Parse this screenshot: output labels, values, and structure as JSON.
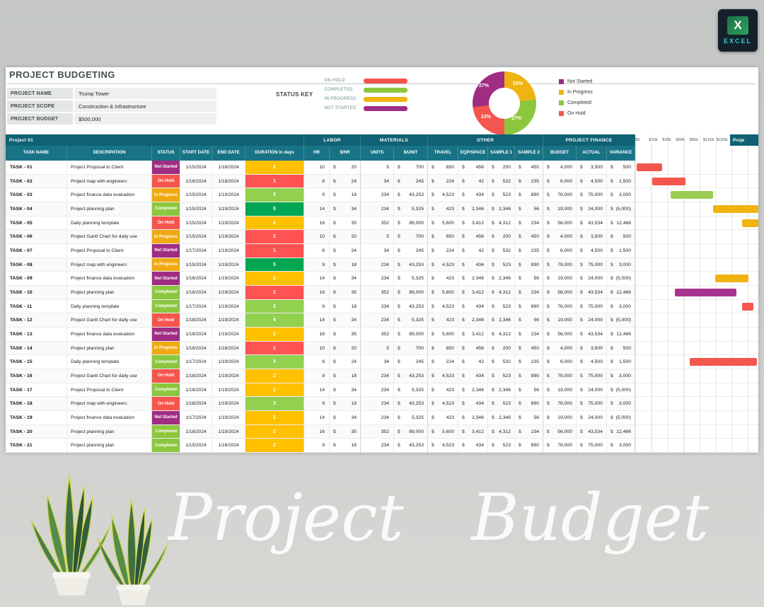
{
  "logo": {
    "app_label": "EXCEL"
  },
  "header": {
    "title": "PROJECT BUDGETING"
  },
  "project_info": [
    {
      "label": "PROJECT NAME",
      "value": "Trump Tower"
    },
    {
      "label": "PROJECT SCOPE",
      "value": "Construction & Infrastructure"
    },
    {
      "label": "PROJECT BUDGET",
      "value": "$500,000"
    }
  ],
  "status_key": {
    "label": "STATUS KEY",
    "items": [
      {
        "label": "ON HOLD",
        "color": "#f4564e"
      },
      {
        "label": "COMPLETED",
        "color": "#8cc63e"
      },
      {
        "label": "IN PROGRESS",
        "color": "#f0b411"
      },
      {
        "label": "NOT STARTED",
        "color": "#9e2d83"
      }
    ]
  },
  "chart_data": {
    "type": "pie",
    "donut": true,
    "labels": [
      "Not Started",
      "In Progress",
      "Completed",
      "On Hold"
    ],
    "values": [
      27,
      23,
      27,
      23
    ],
    "slice_labels": [
      "27%",
      "23%",
      "27%",
      "23%"
    ],
    "colors": [
      "#9e2d83",
      "#f0b411",
      "#8cc63e",
      "#f4564e"
    ],
    "legend_position": "right"
  },
  "colors": {
    "band1": "#0f6173",
    "band2": "#187386",
    "not_started": "#9e2d83",
    "on_hold": "#f4564e",
    "in_progress": "#efa912",
    "completed": "#8cc63e",
    "duration_yellow": "#ffc000",
    "duration_red": "#ff5252",
    "duration_green": "#92d050",
    "duration_dark_green": "#00a651",
    "gantt_red": "#f4564e",
    "gantt_green": "#9ccd52",
    "gantt_yellow": "#f0b411",
    "gantt_purple": "#a8338e"
  },
  "table": {
    "group_headers": [
      "Project 01",
      "LABOR",
      "MATERIALS",
      "OTHER",
      "PROJECT FINANCE"
    ],
    "gantt_header_cut": "Proje",
    "gantt_scale": [
      "$5",
      "$10k",
      "$30k",
      "$60k",
      "$90k",
      "$120k",
      "$150k"
    ],
    "columns": [
      "TASK NAME",
      "DESCRIPATION",
      "STATUS",
      "START DATE",
      "END DATE",
      "DURATION in days",
      "HR",
      "$/HR",
      "UNITS",
      "$/UNIT",
      "TRAVEL",
      "EQP/SPACE",
      "SAMPLE 1",
      "SAMPLE 2",
      "BUDGET",
      "ACTUAL",
      "VARIANCE"
    ],
    "rows": [
      {
        "task": "TASK - 01",
        "description": "Project Proposal to Client",
        "status": "Not Started",
        "start_date": "1/15/2024",
        "end_date": "1/16/2024",
        "duration": "2",
        "duration_color": "yellow",
        "hr": "10",
        "rate_hr": "20",
        "units": "5",
        "rate_unit": "700",
        "travel": "650",
        "eqp_space": "456",
        "sample1": "200",
        "sample2": "450",
        "budget": "4,000",
        "actual": "3,500",
        "variance": "500",
        "gantt": {
          "start_pct": 1,
          "width_pct": 21,
          "color": "red"
        }
      },
      {
        "task": "TASK - 02",
        "description": "Project map with engineers",
        "status": "On Hold",
        "start_date": "1/16/2024",
        "end_date": "1/18/2024",
        "duration": "1",
        "duration_color": "red",
        "hr": "8",
        "rate_hr": "24",
        "units": "34",
        "rate_unit": "245",
        "travel": "224",
        "eqp_space": "42",
        "sample1": "532",
        "sample2": "235",
        "budget": "6,000",
        "actual": "4,500",
        "variance": "1,500",
        "gantt": {
          "start_pct": 14,
          "width_pct": 27,
          "color": "red"
        }
      },
      {
        "task": "TASK - 03",
        "description": "Project finance data evaluation",
        "status": "In Progress",
        "start_date": "1/15/2024",
        "end_date": "1/19/2024",
        "duration": "3",
        "duration_color": "green",
        "hr": "9",
        "rate_hr": "18",
        "units": "234",
        "rate_unit": "43,253",
        "travel": "4,523",
        "eqp_space": "434",
        "sample1": "523",
        "sample2": "890",
        "budget": "78,000",
        "actual": "75,000",
        "variance": "3,000",
        "gantt": {
          "start_pct": 29,
          "width_pct": 34,
          "color": "green"
        }
      },
      {
        "task": "TASK - 04",
        "description": "Project planning plan",
        "status": "Completed",
        "start_date": "1/15/2024",
        "end_date": "1/19/2024",
        "duration": "5",
        "duration_color": "dark_green",
        "hr": "14",
        "rate_hr": "34",
        "units": "234",
        "rate_unit": "5,325",
        "travel": "423",
        "eqp_space": "2,346",
        "sample1": "2,346",
        "sample2": "56",
        "budget": "19,000",
        "actual": "24,000",
        "variance": "(5,000)",
        "gantt": {
          "start_pct": 63,
          "width_pct": 37,
          "color": "yellow"
        }
      },
      {
        "task": "TASK - 05",
        "description": "Daily planning template",
        "status": "On Hold",
        "start_date": "1/15/2024",
        "end_date": "1/19/2024",
        "duration": "2",
        "duration_color": "yellow",
        "hr": "16",
        "rate_hr": "35",
        "units": "352",
        "rate_unit": "89,000",
        "travel": "5,600",
        "eqp_space": "3,412",
        "sample1": "4,312",
        "sample2": "234",
        "budget": "56,000",
        "actual": "43,534",
        "variance": "12,466",
        "gantt": {
          "start_pct": 87,
          "width_pct": 13,
          "color": "yellow"
        }
      },
      {
        "task": "TASK - 06",
        "description": "Project Gantt Chart for daily use",
        "status": "In Progress",
        "start_date": "1/15/2024",
        "end_date": "1/19/2024",
        "duration": "1",
        "duration_color": "red",
        "hr": "10",
        "rate_hr": "20",
        "units": "5",
        "rate_unit": "700",
        "travel": "650",
        "eqp_space": "456",
        "sample1": "200",
        "sample2": "450",
        "budget": "4,000",
        "actual": "3,500",
        "variance": "500",
        "gantt": null
      },
      {
        "task": "TASK - 07",
        "description": "Project Proposal to Client",
        "status": "Not Started",
        "start_date": "1/17/2024",
        "end_date": "1/19/2024",
        "duration": "1",
        "duration_color": "red",
        "hr": "8",
        "rate_hr": "24",
        "units": "34",
        "rate_unit": "245",
        "travel": "224",
        "eqp_space": "42",
        "sample1": "532",
        "sample2": "235",
        "budget": "6,000",
        "actual": "4,500",
        "variance": "1,500",
        "gantt": null
      },
      {
        "task": "TASK - 08",
        "description": "Project map with engineers",
        "status": "In Progress",
        "start_date": "1/15/2024",
        "end_date": "1/19/2024",
        "duration": "5",
        "duration_color": "dark_green",
        "hr": "9",
        "rate_hr": "18",
        "units": "234",
        "rate_unit": "43,253",
        "travel": "4,523",
        "eqp_space": "434",
        "sample1": "523",
        "sample2": "890",
        "budget": "78,000",
        "actual": "75,000",
        "variance": "3,000",
        "gantt": null
      },
      {
        "task": "TASK - 09",
        "description": "Project finance data evaluation",
        "status": "Not Started",
        "start_date": "1/16/2024",
        "end_date": "1/19/2024",
        "duration": "2",
        "duration_color": "yellow",
        "hr": "14",
        "rate_hr": "34",
        "units": "234",
        "rate_unit": "5,325",
        "travel": "423",
        "eqp_space": "2,346",
        "sample1": "2,346",
        "sample2": "56",
        "budget": "19,000",
        "actual": "24,000",
        "variance": "(5,000)",
        "gantt": {
          "start_pct": 65,
          "width_pct": 27,
          "color": "yellow"
        }
      },
      {
        "task": "TASK - 10",
        "description": "Project planning plan",
        "status": "Completed",
        "start_date": "1/16/2024",
        "end_date": "1/19/2024",
        "duration": "1",
        "duration_color": "red",
        "hr": "16",
        "rate_hr": "35",
        "units": "352",
        "rate_unit": "89,000",
        "travel": "5,600",
        "eqp_space": "3,412",
        "sample1": "4,312",
        "sample2": "234",
        "budget": "56,000",
        "actual": "43,534",
        "variance": "12,466",
        "gantt": {
          "start_pct": 32,
          "width_pct": 50,
          "color": "purple"
        }
      },
      {
        "task": "TASK - 11",
        "description": "Daily planning template",
        "status": "Completed",
        "start_date": "1/17/2024",
        "end_date": "1/19/2024",
        "duration": "3",
        "duration_color": "green",
        "hr": "9",
        "rate_hr": "18",
        "units": "234",
        "rate_unit": "43,253",
        "travel": "4,523",
        "eqp_space": "434",
        "sample1": "523",
        "sample2": "890",
        "budget": "78,000",
        "actual": "75,000",
        "variance": "3,000",
        "gantt": {
          "start_pct": 87,
          "width_pct": 9,
          "color": "red"
        }
      },
      {
        "task": "TASK - 12",
        "description": "Project Gantt Chart for daily use",
        "status": "On Hold",
        "start_date": "1/18/2024",
        "end_date": "1/19/2024",
        "duration": "4",
        "duration_color": "green",
        "hr": "14",
        "rate_hr": "34",
        "units": "234",
        "rate_unit": "5,325",
        "travel": "423",
        "eqp_space": "2,346",
        "sample1": "2,346",
        "sample2": "56",
        "budget": "19,000",
        "actual": "24,000",
        "variance": "(5,000)",
        "gantt": null
      },
      {
        "task": "TASK - 13",
        "description": "Project finance data evaluation",
        "status": "Not Started",
        "start_date": "1/18/2024",
        "end_date": "1/19/2024",
        "duration": "2",
        "duration_color": "yellow",
        "hr": "16",
        "rate_hr": "35",
        "units": "352",
        "rate_unit": "89,000",
        "travel": "5,600",
        "eqp_space": "3,412",
        "sample1": "4,312",
        "sample2": "234",
        "budget": "56,000",
        "actual": "43,534",
        "variance": "12,466",
        "gantt": null
      },
      {
        "task": "TASK - 14",
        "description": "Project planning plan",
        "status": "In Progress",
        "start_date": "1/16/2024",
        "end_date": "1/16/2024",
        "duration": "1",
        "duration_color": "red",
        "hr": "10",
        "rate_hr": "20",
        "units": "5",
        "rate_unit": "700",
        "travel": "650",
        "eqp_space": "456",
        "sample1": "200",
        "sample2": "450",
        "budget": "4,000",
        "actual": "3,500",
        "variance": "500",
        "gantt": null
      },
      {
        "task": "TASK - 15",
        "description": "Daily planning template",
        "status": "Completed",
        "start_date": "1/17/2024",
        "end_date": "1/19/2024",
        "duration": "3",
        "duration_color": "green",
        "hr": "8",
        "rate_hr": "24",
        "units": "34",
        "rate_unit": "245",
        "travel": "224",
        "eqp_space": "42",
        "sample1": "532",
        "sample2": "235",
        "budget": "6,000",
        "actual": "4,500",
        "variance": "1,500",
        "gantt": {
          "start_pct": 44,
          "width_pct": 55,
          "color": "red"
        }
      },
      {
        "task": "TASK - 16",
        "description": "Project Gantt Chart for daily use",
        "status": "On Hold",
        "start_date": "1/18/2024",
        "end_date": "1/19/2024",
        "duration": "2",
        "duration_color": "yellow",
        "hr": "9",
        "rate_hr": "18",
        "units": "234",
        "rate_unit": "43,253",
        "travel": "4,523",
        "eqp_space": "434",
        "sample1": "523",
        "sample2": "890",
        "budget": "78,000",
        "actual": "75,000",
        "variance": "3,000",
        "gantt": null
      },
      {
        "task": "TASK - 17",
        "description": "Project Proposal to Client",
        "status": "Completed",
        "start_date": "1/18/2024",
        "end_date": "1/19/2024",
        "duration": "2",
        "duration_color": "yellow",
        "hr": "14",
        "rate_hr": "34",
        "units": "234",
        "rate_unit": "5,325",
        "travel": "423",
        "eqp_space": "2,346",
        "sample1": "2,346",
        "sample2": "56",
        "budget": "19,000",
        "actual": "24,000",
        "variance": "(5,000)",
        "gantt": null
      },
      {
        "task": "TASK - 18",
        "description": "Project map with engineers",
        "status": "On Hold",
        "start_date": "1/18/2024",
        "end_date": "1/19/2024",
        "duration": "3",
        "duration_color": "green",
        "hr": "9",
        "rate_hr": "18",
        "units": "234",
        "rate_unit": "43,253",
        "travel": "4,523",
        "eqp_space": "434",
        "sample1": "523",
        "sample2": "890",
        "budget": "78,000",
        "actual": "75,000",
        "variance": "3,000",
        "gantt": null
      },
      {
        "task": "TASK - 19",
        "description": "Project finance data evaluation",
        "status": "Not Started",
        "start_date": "1/17/2024",
        "end_date": "1/19/2024",
        "duration": "2",
        "duration_color": "yellow",
        "hr": "14",
        "rate_hr": "34",
        "units": "234",
        "rate_unit": "5,325",
        "travel": "423",
        "eqp_space": "2,346",
        "sample1": "2,346",
        "sample2": "56",
        "budget": "19,000",
        "actual": "24,000",
        "variance": "(5,000)",
        "gantt": null
      },
      {
        "task": "TASK - 20",
        "description": "Project planning plan",
        "status": "Completed",
        "start_date": "1/18/2024",
        "end_date": "1/19/2024",
        "duration": "2",
        "duration_color": "yellow",
        "hr": "16",
        "rate_hr": "35",
        "units": "352",
        "rate_unit": "89,000",
        "travel": "5,600",
        "eqp_space": "3,412",
        "sample1": "4,312",
        "sample2": "234",
        "budget": "56,000",
        "actual": "43,534",
        "variance": "12,466",
        "gantt": null
      },
      {
        "task": "TASK - 21",
        "description": "Project planning plan",
        "status": "Completed",
        "start_date": "1/15/2024",
        "end_date": "1/16/2024",
        "duration": "2",
        "duration_color": "yellow",
        "hr": "9",
        "rate_hr": "18",
        "units": "234",
        "rate_unit": "43,253",
        "travel": "4,523",
        "eqp_space": "434",
        "sample1": "523",
        "sample2": "890",
        "budget": "78,000",
        "actual": "75,000",
        "variance": "3,000",
        "gantt": null
      }
    ]
  },
  "footer": {
    "word1": "Project",
    "word2": "Budget"
  }
}
